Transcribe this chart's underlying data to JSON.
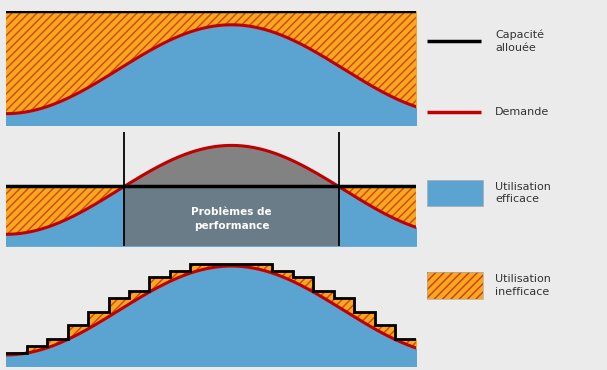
{
  "fig_width": 6.07,
  "fig_height": 3.7,
  "dpi": 100,
  "bg_color": "#ebebeb",
  "panel_bg_top": "#ffffff",
  "panel_bg_mid": "#e0e0e0",
  "panel_bg_bot": "#e0e0e0",
  "blue_fill": "#5BA3D0",
  "orange_fill": "#F5A820",
  "demand_line_color": "#C00000",
  "capacity_line_color": "#000000",
  "perf_box_color": "#707070",
  "perf_text": "Problèmes de\nperformance",
  "cap_fixed_level": 0.52,
  "legend_cap_label": "Capacité\nallouée",
  "legend_dem_label": "Demande",
  "legend_eff_label": "Utilisation\nefficace",
  "legend_ineff_label": "Utilisation\ninefficace"
}
